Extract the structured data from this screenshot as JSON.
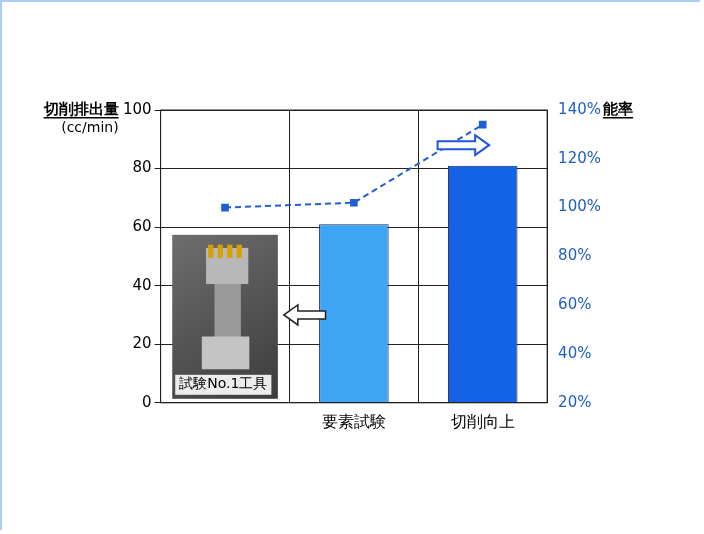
{
  "chart_data": {
    "type": "bar",
    "ylabel": [
      "切削排出量",
      "(cc/min)"
    ],
    "y2label": "能率",
    "categories": [
      null,
      "要素試験",
      "切削向上"
    ],
    "series": [
      {
        "type": "bar",
        "colors": [
          "#3da5f4",
          "#3da5f4",
          "#1463e6"
        ],
        "values": [
          null,
          61,
          81
        ]
      },
      {
        "type": "line",
        "axis": "y2",
        "color": "#1f5fd0",
        "line_style": "dashed",
        "marker": "square",
        "values": [
          100,
          102,
          134
        ]
      }
    ],
    "ylim": [
      0,
      100
    ],
    "yticks": [
      0,
      20,
      40,
      60,
      80,
      100
    ],
    "y2lim": [
      20,
      140
    ],
    "y2ticks": [
      {
        "value": 20,
        "label": "20%"
      },
      {
        "value": 40,
        "label": "40%"
      },
      {
        "value": 60,
        "label": "60%"
      },
      {
        "value": 80,
        "label": "80%"
      },
      {
        "value": 100,
        "label": "100%"
      },
      {
        "value": 120,
        "label": "120%"
      },
      {
        "value": 140,
        "label": "140%"
      }
    ],
    "grid": true,
    "annotations": [
      {
        "text": "試験No.1工具"
      }
    ]
  }
}
